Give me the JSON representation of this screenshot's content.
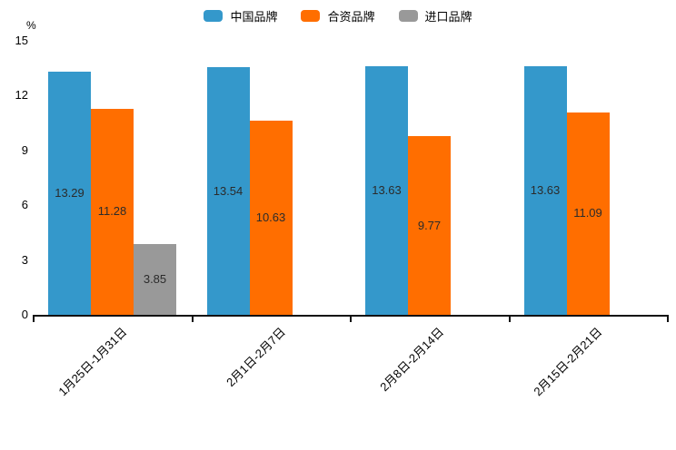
{
  "chart_data": {
    "type": "bar",
    "title": "",
    "xlabel": "",
    "ylabel": "%",
    "unit_label": "%",
    "categories": [
      "1月25日-1月31日",
      "2月1日-2月7日",
      "2月8日-2月14日",
      "2月15日-2月21日"
    ],
    "series": [
      {
        "name": "中国品牌",
        "color": "#3498CB",
        "values": [
          13.29,
          13.54,
          13.63,
          13.63
        ]
      },
      {
        "name": "合资品牌",
        "color": "#FF6E00",
        "values": [
          11.28,
          10.63,
          9.77,
          11.09
        ]
      },
      {
        "name": "进口品牌",
        "color": "#999999",
        "values": [
          3.85,
          null,
          null,
          null
        ]
      }
    ],
    "ylim": [
      0,
      15
    ],
    "yticks": [
      0,
      3,
      6,
      9,
      12,
      15
    ],
    "grid": false,
    "legend_position": "top",
    "value_labels": true
  }
}
